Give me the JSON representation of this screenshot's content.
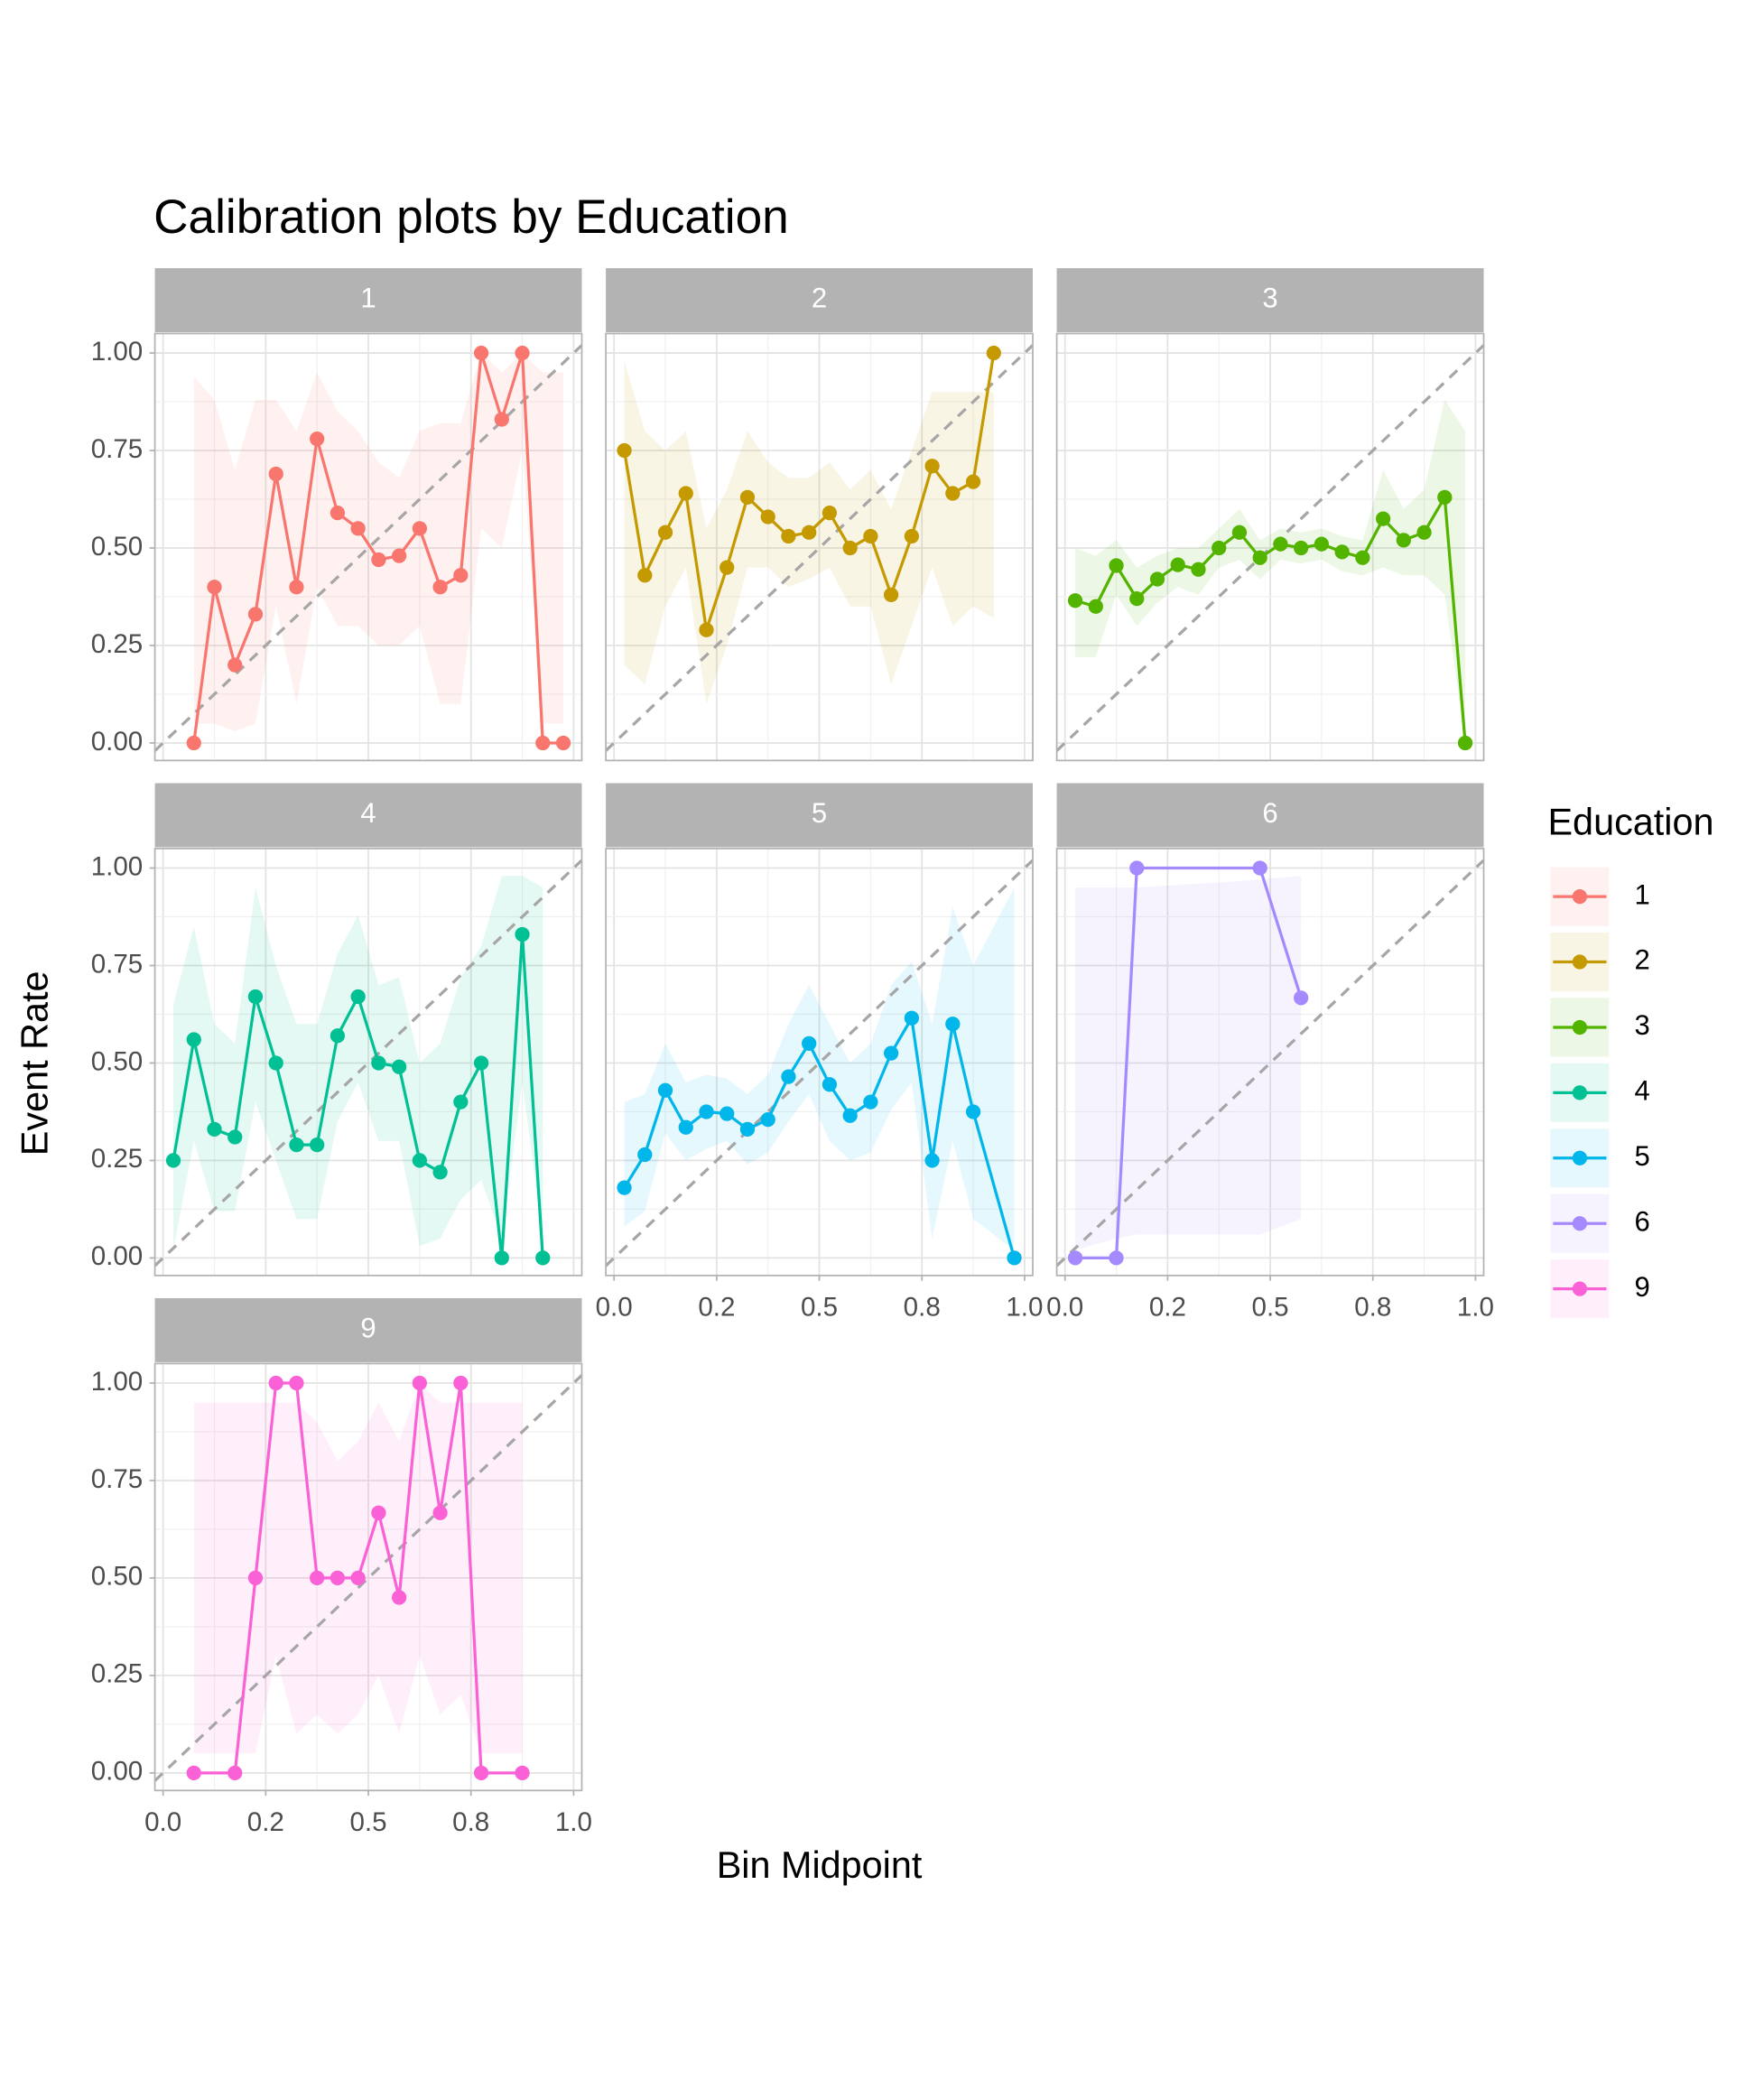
{
  "chart_data": {
    "type": "line",
    "title": "Calibration plots by Education",
    "x_label": "Bin Midpoint",
    "y_label": "Event Rate",
    "legend_title": "Education",
    "xlim": [
      -0.02,
      1.02
    ],
    "ylim": [
      -0.045,
      1.05
    ],
    "xticks": [
      {
        "value": 0,
        "label": "0.0"
      },
      {
        "value": 0.25,
        "label": "0.2"
      },
      0.5,
      {
        "value": 0.75,
        "label": "0.8"
      },
      {
        "value": 1,
        "label": "1.0"
      }
    ],
    "yticks": [
      {
        "value": 0,
        "label": "0.00"
      },
      0.25,
      {
        "value": 0.5,
        "label": "0.50"
      },
      0.75,
      {
        "value": 1,
        "label": "1.00"
      }
    ],
    "grid": true,
    "reference_line": "identity",
    "panels": [
      {
        "name": "1",
        "color": "#F8766D",
        "x": [
          0.075,
          0.125,
          0.175,
          0.225,
          0.275,
          0.325,
          0.375,
          0.425,
          0.475,
          0.525,
          0.575,
          0.625,
          0.675,
          0.725,
          0.775,
          0.825,
          0.875,
          0.925,
          0.975
        ],
        "values": [
          0,
          0.4,
          0.2,
          0.33,
          0.69,
          0.4,
          0.78,
          0.59,
          0.55,
          0.47,
          0.48,
          0.55,
          0.4,
          0.43,
          1,
          0.83,
          1,
          0,
          0
        ],
        "lower": [
          0.05,
          0.05,
          0.03,
          0.05,
          0.35,
          0.1,
          0.4,
          0.3,
          0.3,
          0.25,
          0.25,
          0.3,
          0.1,
          0.1,
          0.55,
          0.5,
          0.75,
          0.05,
          0.05
        ],
        "upper": [
          0.94,
          0.88,
          0.7,
          0.88,
          0.88,
          0.8,
          0.95,
          0.85,
          0.8,
          0.72,
          0.68,
          0.8,
          0.82,
          0.82,
          1,
          0.95,
          1,
          0.95,
          0.95
        ]
      },
      {
        "name": "2",
        "color": "#C49A00",
        "x": [
          0.025,
          0.075,
          0.125,
          0.175,
          0.225,
          0.275,
          0.325,
          0.375,
          0.425,
          0.475,
          0.525,
          0.575,
          0.625,
          0.675,
          0.725,
          0.775,
          0.825,
          0.875,
          0.925
        ],
        "values": [
          0.75,
          0.43,
          0.54,
          0.64,
          0.29,
          0.45,
          0.63,
          0.58,
          0.53,
          0.54,
          0.59,
          0.5,
          0.53,
          0.38,
          0.53,
          0.71,
          0.64,
          0.67,
          1
        ],
        "lower": [
          0.2,
          0.15,
          0.35,
          0.45,
          0.1,
          0.25,
          0.45,
          0.45,
          0.4,
          0.42,
          0.45,
          0.35,
          0.35,
          0.15,
          0.3,
          0.45,
          0.3,
          0.35,
          0.32
        ],
        "upper": [
          0.98,
          0.8,
          0.75,
          0.8,
          0.55,
          0.65,
          0.8,
          0.72,
          0.68,
          0.68,
          0.72,
          0.65,
          0.7,
          0.6,
          0.75,
          0.9,
          0.9,
          0.9,
          0.9
        ]
      },
      {
        "name": "3",
        "color": "#53B400",
        "x": [
          0.025,
          0.075,
          0.125,
          0.175,
          0.225,
          0.275,
          0.325,
          0.375,
          0.425,
          0.475,
          0.525,
          0.575,
          0.625,
          0.675,
          0.725,
          0.775,
          0.825,
          0.875,
          0.925,
          0.975
        ],
        "values": [
          0.365,
          0.35,
          0.455,
          0.37,
          0.42,
          0.457,
          0.445,
          0.5,
          0.54,
          0.475,
          0.51,
          0.5,
          0.51,
          0.49,
          0.475,
          0.575,
          0.52,
          0.54,
          0.63,
          0
        ],
        "lower": [
          0.22,
          0.22,
          0.38,
          0.3,
          0.36,
          0.4,
          0.38,
          0.45,
          0.47,
          0.42,
          0.47,
          0.46,
          0.47,
          0.44,
          0.43,
          0.45,
          0.43,
          0.43,
          0.38,
          0
        ],
        "upper": [
          0.5,
          0.48,
          0.52,
          0.45,
          0.48,
          0.5,
          0.5,
          0.55,
          0.6,
          0.52,
          0.55,
          0.54,
          0.55,
          0.53,
          0.52,
          0.7,
          0.6,
          0.65,
          0.88,
          0.8
        ]
      },
      {
        "name": "4",
        "color": "#00C094",
        "x": [
          0.025,
          0.075,
          0.125,
          0.175,
          0.225,
          0.275,
          0.325,
          0.375,
          0.425,
          0.475,
          0.525,
          0.575,
          0.625,
          0.675,
          0.725,
          0.775,
          0.825,
          0.875,
          0.925
        ],
        "values": [
          0.25,
          0.56,
          0.33,
          0.31,
          0.67,
          0.5,
          0.29,
          0.29,
          0.57,
          0.67,
          0.5,
          0.49,
          0.25,
          0.22,
          0.4,
          0.5,
          0,
          0.83,
          0
        ],
        "lower": [
          0.02,
          0.3,
          0.12,
          0.12,
          0.4,
          0.25,
          0.1,
          0.1,
          0.35,
          0.45,
          0.3,
          0.3,
          0.03,
          0.05,
          0.15,
          0.2,
          0.05,
          0.45,
          0.05
        ],
        "upper": [
          0.65,
          0.85,
          0.6,
          0.55,
          0.95,
          0.75,
          0.6,
          0.6,
          0.78,
          0.88,
          0.7,
          0.72,
          0.5,
          0.55,
          0.72,
          0.8,
          0.98,
          0.98,
          0.95
        ]
      },
      {
        "name": "5",
        "color": "#00B6EB",
        "x": [
          0.025,
          0.075,
          0.125,
          0.175,
          0.225,
          0.275,
          0.325,
          0.375,
          0.425,
          0.475,
          0.525,
          0.575,
          0.625,
          0.675,
          0.725,
          0.775,
          0.825,
          0.875,
          0.975
        ],
        "values": [
          0.18,
          0.265,
          0.43,
          0.335,
          0.375,
          0.37,
          0.33,
          0.355,
          0.465,
          0.55,
          0.445,
          0.365,
          0.4,
          0.525,
          0.615,
          0.25,
          0.6,
          0.375,
          0
        ],
        "lower": [
          0.08,
          0.12,
          0.32,
          0.25,
          0.28,
          0.3,
          0.24,
          0.27,
          0.35,
          0.42,
          0.3,
          0.25,
          0.27,
          0.38,
          0.45,
          0.05,
          0.3,
          0.1,
          0.02
        ],
        "upper": [
          0.4,
          0.42,
          0.55,
          0.45,
          0.47,
          0.46,
          0.42,
          0.47,
          0.6,
          0.7,
          0.6,
          0.5,
          0.55,
          0.7,
          0.76,
          0.6,
          0.9,
          0.75,
          0.95
        ]
      },
      {
        "name": "6",
        "color": "#A58AFF",
        "x": [
          0.025,
          0.125,
          0.175,
          0.475,
          0.575
        ],
        "values": [
          0,
          0,
          1,
          1,
          0.667
        ],
        "lower": [
          0.02,
          0.05,
          0.06,
          0.06,
          0.1
        ],
        "upper": [
          0.95,
          0.95,
          0.95,
          0.97,
          0.98
        ]
      },
      {
        "name": "9",
        "color": "#FB61D7",
        "x": [
          0.075,
          0.175,
          0.225,
          0.275,
          0.325,
          0.375,
          0.425,
          0.475,
          0.525,
          0.575,
          0.625,
          0.675,
          0.725,
          0.775,
          0.875
        ],
        "values": [
          0,
          0,
          0.5,
          1,
          1,
          0.5,
          0.5,
          0.5,
          0.667,
          0.45,
          1,
          0.667,
          1,
          0,
          0
        ],
        "lower": [
          0.05,
          0.05,
          0.05,
          0.3,
          0.1,
          0.15,
          0.1,
          0.15,
          0.25,
          0.1,
          0.3,
          0.15,
          0.2,
          0.05,
          0.05
        ],
        "upper": [
          0.95,
          0.95,
          0.95,
          0.95,
          0.95,
          0.9,
          0.8,
          0.85,
          0.95,
          0.85,
          1,
          0.95,
          0.95,
          0.95,
          0.95
        ]
      }
    ]
  }
}
